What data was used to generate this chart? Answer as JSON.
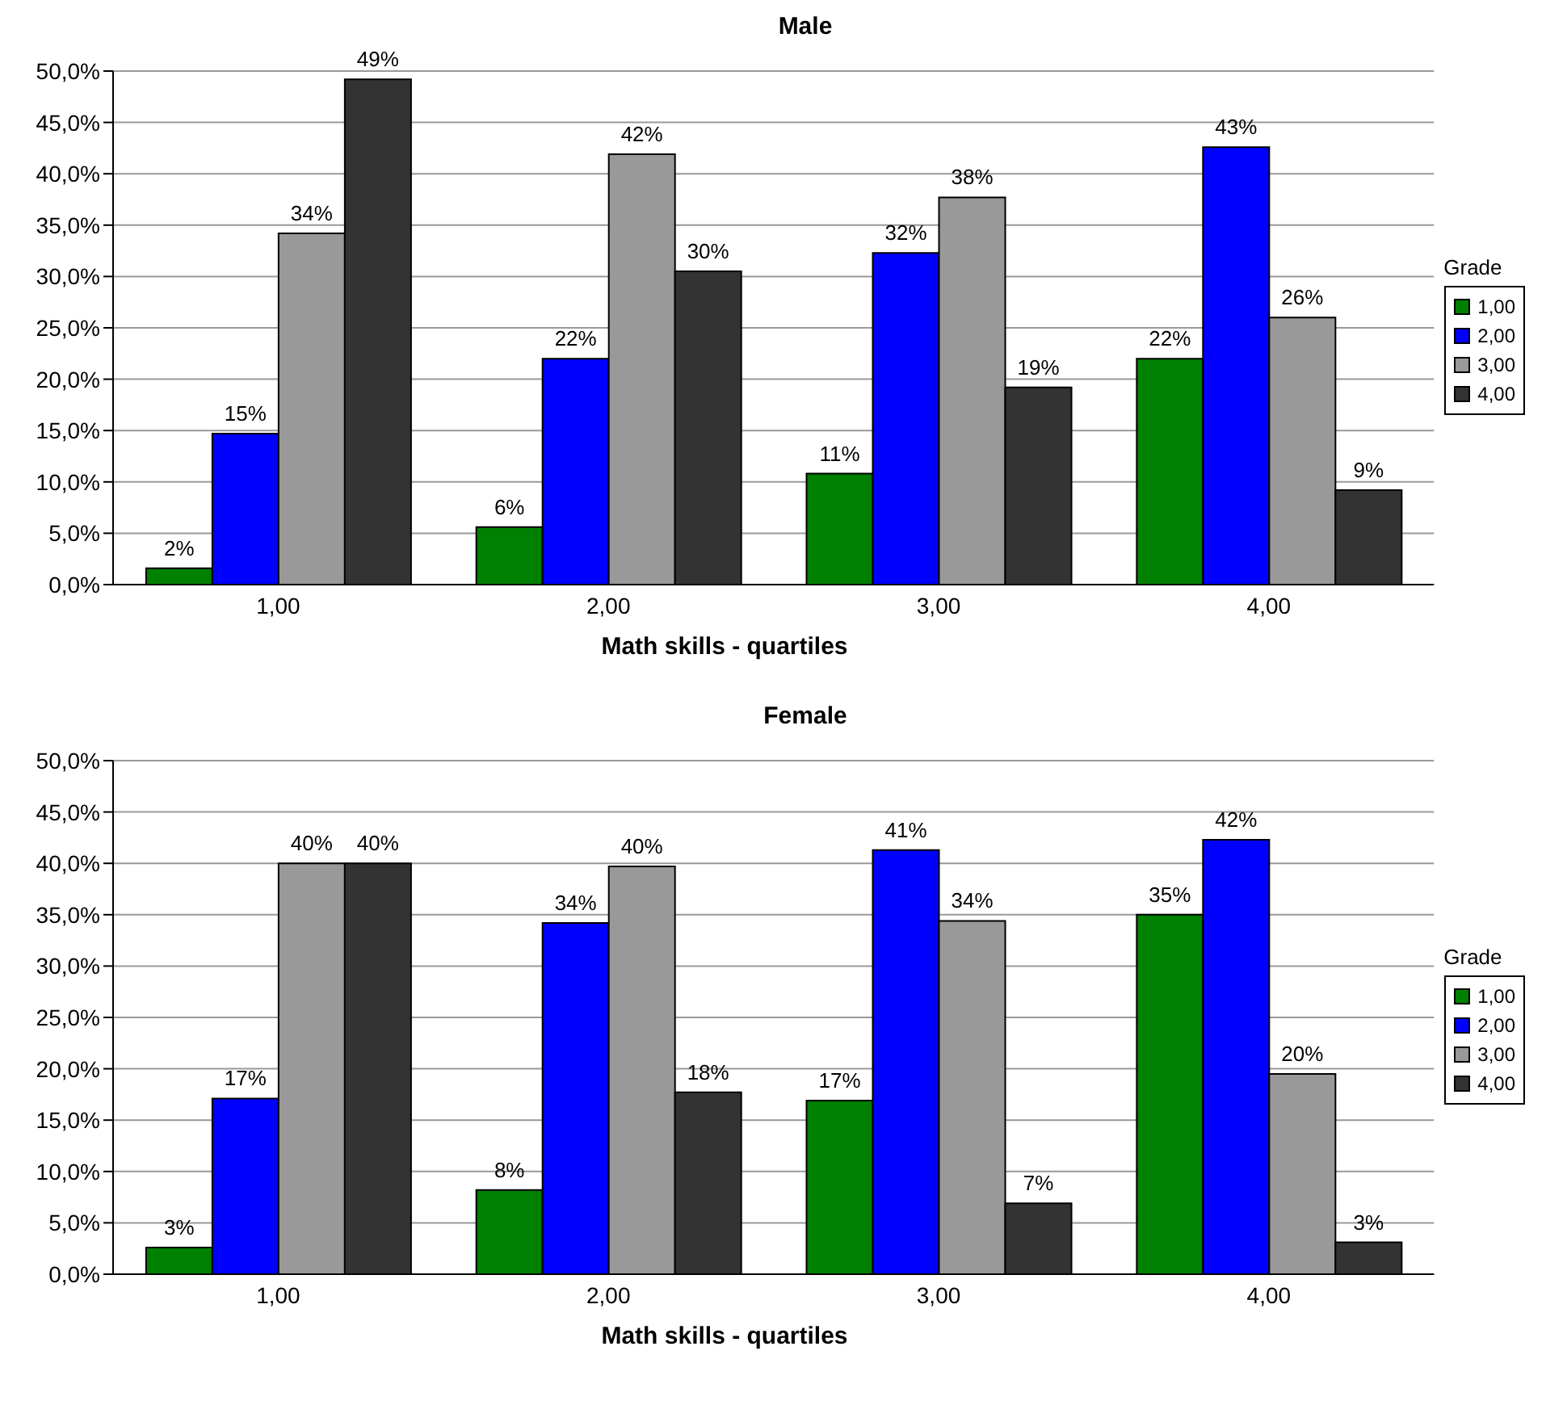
{
  "chart_data": [
    {
      "type": "bar",
      "title": "Male",
      "xlabel": "Math skills - quartiles",
      "legend_title": "Grade",
      "categories": [
        "1,00",
        "2,00",
        "3,00",
        "4,00"
      ],
      "series": [
        {
          "name": "1,00",
          "color": "#008000",
          "values": [
            1.6,
            5.6,
            10.8,
            22.0
          ],
          "value_labels": [
            "2%",
            "6%",
            "11%",
            "22%"
          ]
        },
        {
          "name": "2,00",
          "color": "#0000ff",
          "values": [
            14.7,
            22.0,
            32.3,
            42.6
          ],
          "value_labels": [
            "15%",
            "22%",
            "32%",
            "43%"
          ]
        },
        {
          "name": "3,00",
          "color": "#999999",
          "values": [
            34.2,
            41.9,
            37.7,
            26.0
          ],
          "value_labels": [
            "34%",
            "42%",
            "38%",
            "26%"
          ]
        },
        {
          "name": "4,00",
          "color": "#333333",
          "values": [
            49.2,
            30.5,
            19.2,
            9.2
          ],
          "value_labels": [
            "49%",
            "30%",
            "19%",
            "9%"
          ]
        }
      ],
      "ylim": [
        0,
        50
      ],
      "yticks": [
        {
          "value": 0,
          "label": "0,0%"
        },
        {
          "value": 5,
          "label": "5,0%"
        },
        {
          "value": 10,
          "label": "10,0%"
        },
        {
          "value": 15,
          "label": "15,0%"
        },
        {
          "value": 20,
          "label": "20,0%"
        },
        {
          "value": 25,
          "label": "25,0%"
        },
        {
          "value": 30,
          "label": "30,0%"
        },
        {
          "value": 35,
          "label": "35,0%"
        },
        {
          "value": 40,
          "label": "40,0%"
        },
        {
          "value": 45,
          "label": "45,0%"
        },
        {
          "value": 50,
          "label": "50,0%"
        }
      ],
      "grid": "y",
      "legend": "right"
    },
    {
      "type": "bar",
      "title": "Female",
      "xlabel": "Math skills - quartiles",
      "legend_title": "Grade",
      "categories": [
        "1,00",
        "2,00",
        "3,00",
        "4,00"
      ],
      "series": [
        {
          "name": "1,00",
          "color": "#008000",
          "values": [
            2.6,
            8.2,
            16.9,
            35.0
          ],
          "value_labels": [
            "3%",
            "8%",
            "17%",
            "35%"
          ]
        },
        {
          "name": "2,00",
          "color": "#0000ff",
          "values": [
            17.1,
            34.2,
            41.3,
            42.3
          ],
          "value_labels": [
            "17%",
            "34%",
            "41%",
            "42%"
          ]
        },
        {
          "name": "3,00",
          "color": "#999999",
          "values": [
            40.0,
            39.7,
            34.4,
            19.5
          ],
          "value_labels": [
            "40%",
            "40%",
            "34%",
            "20%"
          ]
        },
        {
          "name": "4,00",
          "color": "#333333",
          "values": [
            40.0,
            17.7,
            6.9,
            3.1
          ],
          "value_labels": [
            "40%",
            "18%",
            "7%",
            "3%"
          ]
        }
      ],
      "ylim": [
        0,
        50
      ],
      "yticks": [
        {
          "value": 0,
          "label": "0,0%"
        },
        {
          "value": 5,
          "label": "5,0%"
        },
        {
          "value": 10,
          "label": "10,0%"
        },
        {
          "value": 15,
          "label": "15,0%"
        },
        {
          "value": 20,
          "label": "20,0%"
        },
        {
          "value": 25,
          "label": "25,0%"
        },
        {
          "value": 30,
          "label": "30,0%"
        },
        {
          "value": 35,
          "label": "35,0%"
        },
        {
          "value": 40,
          "label": "40,0%"
        },
        {
          "value": 45,
          "label": "45,0%"
        },
        {
          "value": 50,
          "label": "50,0%"
        }
      ],
      "grid": "y",
      "legend": "right"
    }
  ]
}
